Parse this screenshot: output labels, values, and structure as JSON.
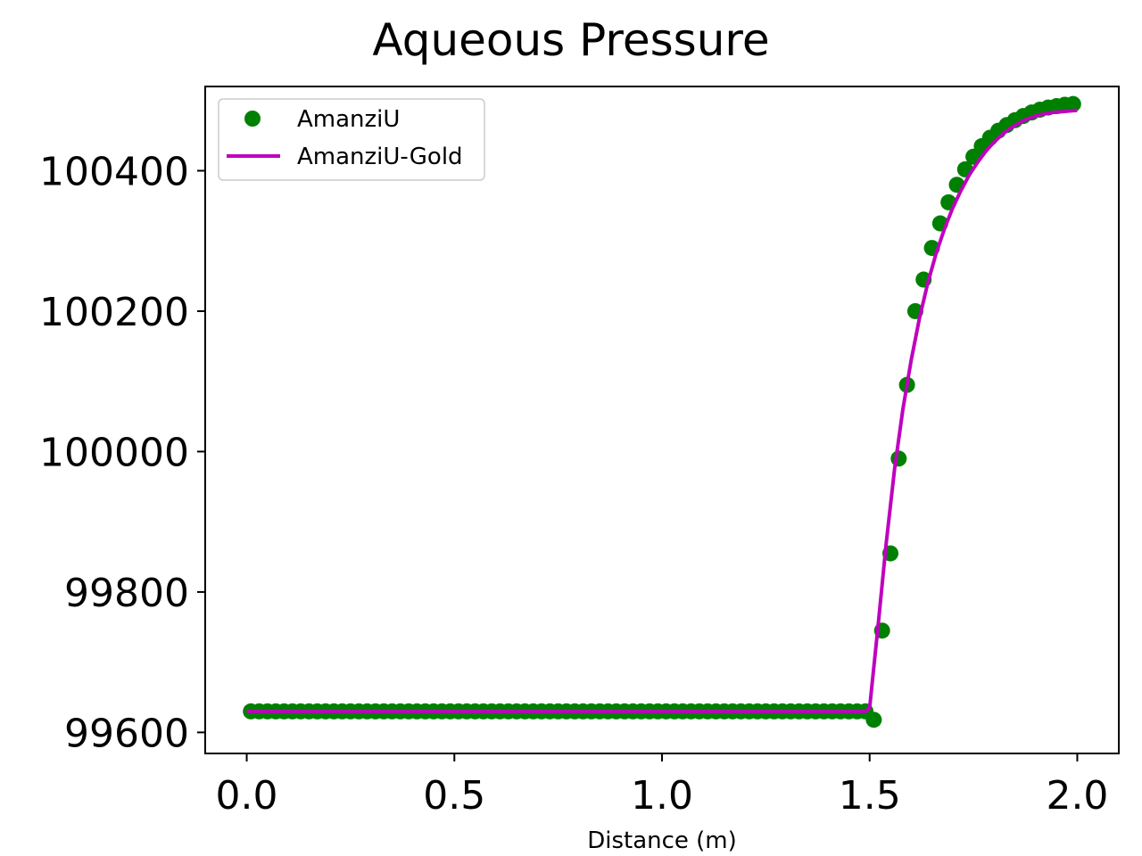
{
  "chart_data": {
    "type": "line",
    "title": "Aqueous Pressure",
    "xlabel": "Distance (m)",
    "ylabel": "",
    "xlim": [
      -0.1,
      2.1
    ],
    "ylim": [
      99570,
      100520
    ],
    "xticks": [
      0.0,
      0.5,
      1.0,
      1.5,
      2.0
    ],
    "xtick_labels": [
      "0.0",
      "0.5",
      "1.0",
      "1.5",
      "2.0"
    ],
    "yticks": [
      99600,
      99800,
      100000,
      100200,
      100400
    ],
    "ytick_labels": [
      "99600",
      "99800",
      "100000",
      "100200",
      "100400"
    ],
    "grid": false,
    "legend": {
      "position": "top-left"
    },
    "series": [
      {
        "name": "AmanziU",
        "style": "scatter",
        "color": "#008000",
        "x": [
          0.01,
          0.03,
          0.05,
          0.07,
          0.09,
          0.11,
          0.13,
          0.15,
          0.17,
          0.19,
          0.21,
          0.23,
          0.25,
          0.27,
          0.29,
          0.31,
          0.33,
          0.35,
          0.37,
          0.39,
          0.41,
          0.43,
          0.45,
          0.47,
          0.49,
          0.51,
          0.53,
          0.55,
          0.57,
          0.59,
          0.61,
          0.63,
          0.65,
          0.67,
          0.69,
          0.71,
          0.73,
          0.75,
          0.77,
          0.79,
          0.81,
          0.83,
          0.85,
          0.87,
          0.89,
          0.91,
          0.93,
          0.95,
          0.97,
          0.99,
          1.01,
          1.03,
          1.05,
          1.07,
          1.09,
          1.11,
          1.13,
          1.15,
          1.17,
          1.19,
          1.21,
          1.23,
          1.25,
          1.27,
          1.29,
          1.31,
          1.33,
          1.35,
          1.37,
          1.39,
          1.41,
          1.43,
          1.45,
          1.47,
          1.49,
          1.51,
          1.53,
          1.55,
          1.57,
          1.59,
          1.61,
          1.63,
          1.65,
          1.67,
          1.69,
          1.71,
          1.73,
          1.75,
          1.77,
          1.79,
          1.81,
          1.83,
          1.85,
          1.87,
          1.89,
          1.91,
          1.93,
          1.95,
          1.97,
          1.99
        ],
        "y": [
          99630,
          99630,
          99630,
          99630,
          99630,
          99630,
          99630,
          99630,
          99630,
          99630,
          99630,
          99630,
          99630,
          99630,
          99630,
          99630,
          99630,
          99630,
          99630,
          99630,
          99630,
          99630,
          99630,
          99630,
          99630,
          99630,
          99630,
          99630,
          99630,
          99630,
          99630,
          99630,
          99630,
          99630,
          99630,
          99630,
          99630,
          99630,
          99630,
          99630,
          99630,
          99630,
          99630,
          99630,
          99630,
          99630,
          99630,
          99630,
          99630,
          99630,
          99630,
          99630,
          99630,
          99630,
          99630,
          99630,
          99630,
          99630,
          99630,
          99630,
          99630,
          99630,
          99630,
          99630,
          99630,
          99630,
          99630,
          99630,
          99630,
          99630,
          99630,
          99630,
          99630,
          99630,
          99630,
          99618,
          99745,
          99855,
          99990,
          100095,
          100200,
          100245,
          100290,
          100325,
          100355,
          100380,
          100402,
          100420,
          100435,
          100447,
          100457,
          100465,
          100472,
          100478,
          100483,
          100487,
          100490,
          100492,
          100494,
          100495
        ]
      },
      {
        "name": "AmanziU-Gold",
        "style": "line",
        "color": "#bf00bf",
        "x": [
          0.0,
          1.49,
          1.5,
          1.52,
          1.54,
          1.56,
          1.58,
          1.6,
          1.62,
          1.64,
          1.66,
          1.68,
          1.7,
          1.72,
          1.74,
          1.76,
          1.78,
          1.8,
          1.82,
          1.84,
          1.86,
          1.88,
          1.9,
          1.92,
          1.94,
          1.96,
          1.98,
          2.0
        ],
        "y": [
          99630,
          99630,
          99635,
          99750,
          99870,
          99975,
          100060,
          100130,
          100190,
          100240,
          100282,
          100317,
          100347,
          100372,
          100394,
          100412,
          100428,
          100441,
          100452,
          100461,
          100468,
          100474,
          100478,
          100481,
          100483,
          100484,
          100485,
          100486
        ]
      }
    ]
  }
}
